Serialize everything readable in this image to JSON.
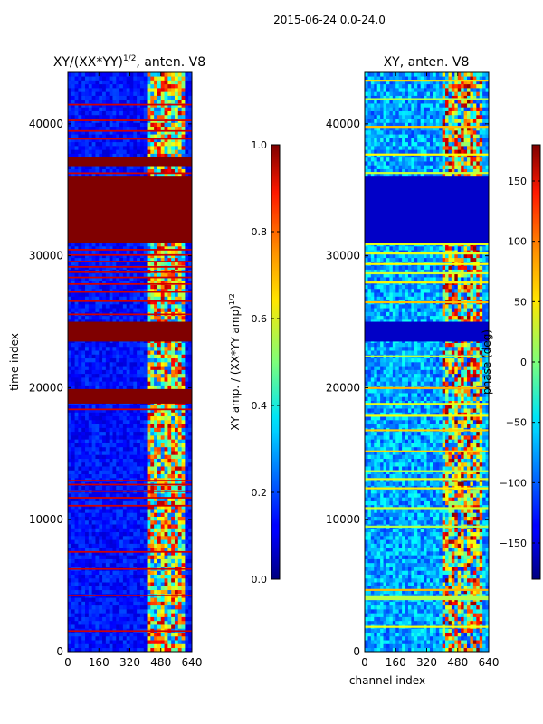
{
  "figure": {
    "suptitle": "2015-06-24 0.0-24.0"
  },
  "chart_data": [
    {
      "type": "heatmap",
      "title": "XY/(XX*YY)^{1/2}, anten. V8",
      "title_main": "XY/(XX*YY)",
      "title_exp": "1/2",
      "title_tail": ", anten. V8",
      "xlabel": "",
      "ylabel": "time index",
      "xlim": [
        0,
        640
      ],
      "ylim": [
        0,
        43900
      ],
      "xticks": [
        0,
        160,
        320,
        480,
        640
      ],
      "yticks": [
        0,
        10000,
        20000,
        30000,
        40000
      ],
      "colormap": "jet",
      "colorbar": {
        "label": "XY amp. / (XX*YY amp)^{1/2}",
        "label_main": "XY amp. / (XX*YY amp)",
        "label_exp": "1/2",
        "range": [
          0.0,
          1.0
        ],
        "ticks": [
          0.0,
          0.2,
          0.4,
          0.6,
          0.8,
          1.0
        ],
        "tick_labels": [
          "0.0",
          "0.2",
          "0.4",
          "0.6",
          "0.8",
          "1.0"
        ]
      },
      "saturated_time_bands": [
        [
          18800,
          19900
        ],
        [
          23500,
          25000
        ],
        [
          31000,
          36000
        ],
        [
          36800,
          37500
        ]
      ],
      "thin_saturated_rows": [
        1500,
        4200,
        6200,
        7500,
        11000,
        11600,
        12100,
        12600,
        12900,
        18300,
        25500,
        26500,
        27200,
        27800,
        28300,
        28700,
        29100,
        29500,
        30000,
        30400,
        36200,
        38800,
        39400,
        40200,
        41400
      ],
      "active_channel_range": [
        400,
        600
      ]
    },
    {
      "type": "heatmap",
      "title": "XY, anten. V8",
      "xlabel": "channel index",
      "ylabel": "",
      "xlim": [
        0,
        640
      ],
      "ylim": [
        0,
        43900
      ],
      "xticks": [
        0,
        160,
        320,
        480,
        640
      ],
      "yticks": [
        0,
        10000,
        20000,
        30000,
        40000
      ],
      "colormap": "jet",
      "colorbar": {
        "label": "phase (deg)",
        "range": [
          -180,
          180
        ],
        "ticks": [
          -150,
          -100,
          -50,
          0,
          50,
          100,
          150
        ],
        "tick_labels": [
          "−150",
          "−100",
          "−50",
          "0",
          "50",
          "100",
          "150"
        ]
      },
      "flat_time_bands": [
        [
          3900,
          4200
        ],
        [
          23500,
          25000
        ],
        [
          31000,
          36000
        ]
      ],
      "bright_rows": [
        1800,
        4000,
        4600,
        9400,
        10800,
        12300,
        13000,
        13600,
        15100,
        16700,
        17800,
        18700,
        19900,
        22300,
        26400,
        27900,
        28600,
        29300,
        30100,
        30800,
        36200,
        37600,
        39700,
        41800,
        43200
      ],
      "active_channel_range": [
        400,
        600
      ]
    }
  ],
  "colors": {
    "jet_min": "#00007f",
    "jet_max": "#7f0000"
  }
}
